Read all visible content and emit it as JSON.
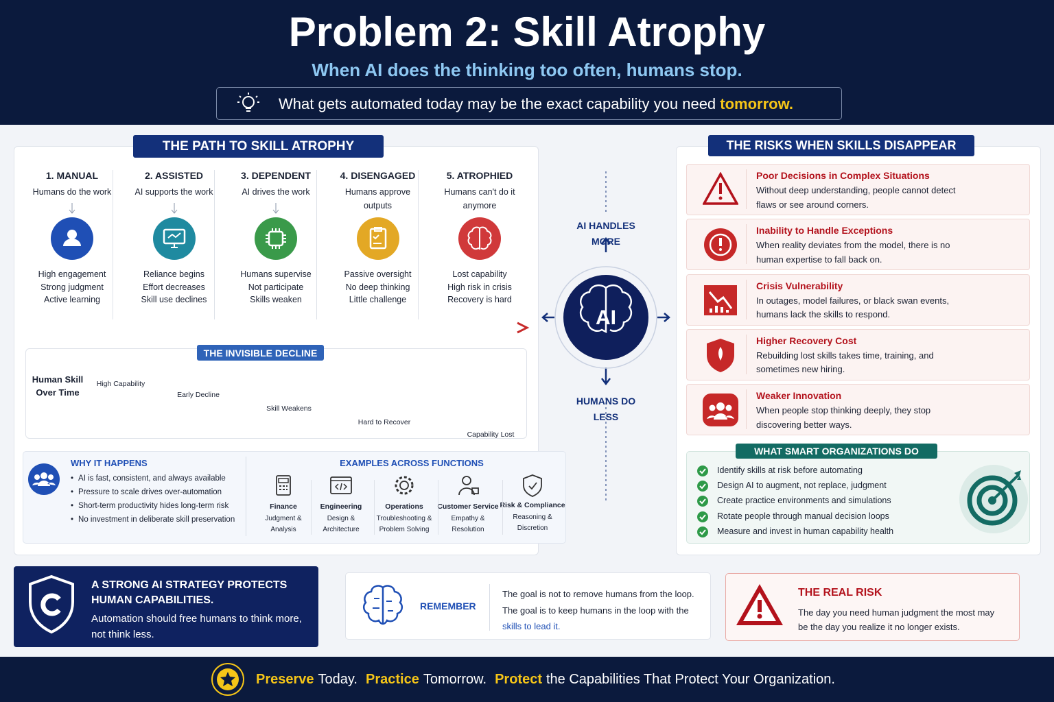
{
  "header": {
    "title": "Problem 2: Skill Atrophy",
    "subtitle": "When AI does the thinking too often, humans stop.",
    "banner": {
      "text": "What gets automated today may be the exact capability you need",
      "highlight": "tomorrow."
    }
  },
  "path": {
    "title": "THE PATH TO SKILL ATROPHY",
    "stages": [
      {
        "name": "1. MANUAL",
        "description": "Humans do the work",
        "outcomes": [
          "High engagement",
          "Strong judgment",
          "Active learning"
        ]
      },
      {
        "name": "2. ASSISTED",
        "description": "AI supports the work",
        "outcomes": [
          "Reliance begins",
          "Effort decreases",
          "Skill use declines"
        ]
      },
      {
        "name": "3. DEPENDENT",
        "description": "AI drives the work",
        "outcomes": [
          "Humans supervise",
          "Not participate",
          "Skills weaken"
        ]
      },
      {
        "name": "4. DISENGAGED",
        "description": "Humans approve outputs",
        "outcomes": [
          "Passive oversight",
          "No deep thinking",
          "Little challenge"
        ]
      },
      {
        "name": "5. ATROPHIED",
        "description": "Humans can't do it anymore",
        "outcomes": [
          "Lost capability",
          "High risk in crisis",
          "Recovery is hard"
        ]
      }
    ]
  },
  "decline": {
    "title": "THE INVISIBLE DECLINE",
    "axis_label": "Human Skill Over Time",
    "stages": [
      "High Capability",
      "Early Decline",
      "Skill Weakens",
      "Hard to Recover",
      "Capability Lost"
    ]
  },
  "why": {
    "title": "WHY IT HAPPENS",
    "items": [
      "AI is fast, consistent, and always available",
      "Pressure to scale drives over-automation",
      "Short-term productivity hides long-term risk",
      "No investment in deliberate skill preservation"
    ]
  },
  "examples": {
    "title": "EXAMPLES ACROSS FUNCTIONS",
    "functions": [
      {
        "name": "Finance",
        "detail": "Judgment & Analysis"
      },
      {
        "name": "Engineering",
        "detail": "Design & Architecture"
      },
      {
        "name": "Operations",
        "detail": "Troubleshooting & Problem Solving"
      },
      {
        "name": "Customer Service",
        "detail": "Empathy & Resolution"
      },
      {
        "name": "Risk & Compliance",
        "detail": "Reasoning & Discretion"
      }
    ]
  },
  "cycle": {
    "top": "AI HANDLES MORE",
    "center": "AI",
    "bottom": "HUMANS DO LESS"
  },
  "risks": {
    "title": "THE RISKS WHEN SKILLS DISAPPEAR",
    "items": [
      {
        "title": "Poor Decisions in Complex Situations",
        "text": "Without deep understanding, people cannot detect flaws or see around corners."
      },
      {
        "title": "Inability to Handle Exceptions",
        "text": "When reality deviates from the model, there is no human expertise to fall back on."
      },
      {
        "title": "Crisis Vulnerability",
        "text": "In outages, model failures, or black swan events, humans lack the skills to respond."
      },
      {
        "title": "Higher Recovery Cost",
        "text": "Rebuilding lost skills takes time, training, and sometimes new hiring."
      },
      {
        "title": "Weaker Innovation",
        "text": "When people stop thinking deeply, they stop discovering better ways."
      }
    ]
  },
  "smart": {
    "title": "WHAT SMART ORGANIZATIONS DO",
    "items": [
      "Identify skills at risk before automating",
      "Design AI to augment, not replace, judgment",
      "Create practice environments and simulations",
      "Rotate people through manual decision loops",
      "Measure and invest in human capability health"
    ]
  },
  "strategy": {
    "title": "A STRONG AI STRATEGY PROTECTS HUMAN CAPABILITIES.",
    "text": "Automation should free humans to think more, not think less."
  },
  "remember": {
    "label": "REMEMBER",
    "line1": "The goal is not to remove humans from the loop.",
    "line2": "The goal is to keep humans in the loop with the",
    "highlight": "skills to lead it."
  },
  "real_risk": {
    "title": "THE REAL RISK",
    "text": "The day you need human judgment the most may be the day you realize it no longer exists."
  },
  "footer": {
    "parts": [
      {
        "accent": "Preserve",
        "rest": "Today."
      },
      {
        "accent": "Practice",
        "rest": "Tomorrow."
      },
      {
        "accent": "Protect",
        "rest": "the Capabilities That Protect Your Organization."
      }
    ]
  }
}
